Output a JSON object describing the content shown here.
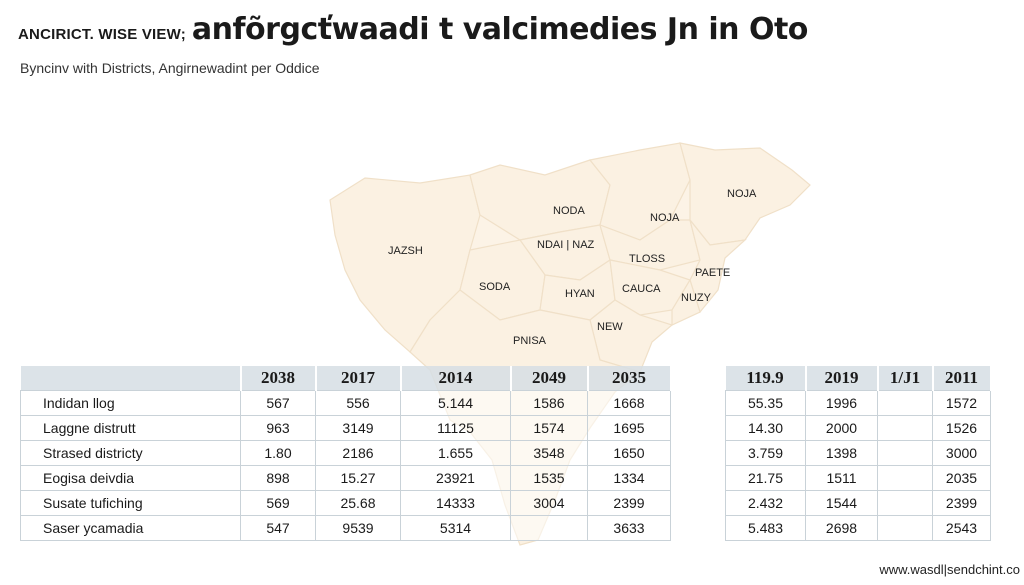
{
  "header": {
    "prefix": "ANCIRICT. WISE VIEW;",
    "title": "anfõrgcťwaadi t valcimedies Jn in Oto",
    "subtitle": "Byncinv with Districts, Angirnewadint per Oddice"
  },
  "map": {
    "fill_color": "#fbf1e2",
    "border_color": "#f0e0c8",
    "labels": [
      "JAZSH",
      "NODA",
      "NOJA",
      "NOJA",
      "NDAI | NAZ",
      "TLOSS",
      "PAETE",
      "SODA",
      "HYAN",
      "CAUCA",
      "NUZY",
      "NEW",
      "PNISA"
    ]
  },
  "table": {
    "headers": [
      "",
      "2038",
      "2017",
      "2014",
      "2049",
      "2035",
      "",
      "119.9",
      "2019",
      "1/J1",
      "2011"
    ],
    "rows": [
      {
        "label": "Indidan llog",
        "cells": [
          "567",
          "556",
          "5.144",
          "1586",
          "1668",
          "",
          "55.35",
          "1996",
          "",
          "1572"
        ]
      },
      {
        "label": "Laggne distrutt",
        "cells": [
          "963",
          "3149",
          "11125",
          "1574",
          "1695",
          "",
          "14.30",
          "2000",
          "",
          "1526"
        ]
      },
      {
        "label": "Strased districty",
        "cells": [
          "1.80",
          "2186",
          "1.655",
          "3548",
          "1650",
          "",
          "3.759",
          "1398",
          "",
          "3000"
        ]
      },
      {
        "label": "Eogisa deivdia",
        "cells": [
          "898",
          "15.27",
          "23921",
          "1535",
          "1334",
          "",
          "21.75",
          "1511",
          "",
          "2035"
        ]
      },
      {
        "label": "Susate tufiching",
        "cells": [
          "569",
          "25.68",
          "14333",
          "3004",
          "2399",
          "",
          "2.432",
          "1544",
          "",
          "2399"
        ]
      },
      {
        "label": "Saser ycamadia",
        "cells": [
          "547",
          "9539",
          "5314",
          "",
          "3633",
          "",
          "5.483",
          "2698",
          "",
          "2543"
        ]
      }
    ]
  },
  "footer": {
    "url": "www.wasdl|sendchint.co"
  }
}
